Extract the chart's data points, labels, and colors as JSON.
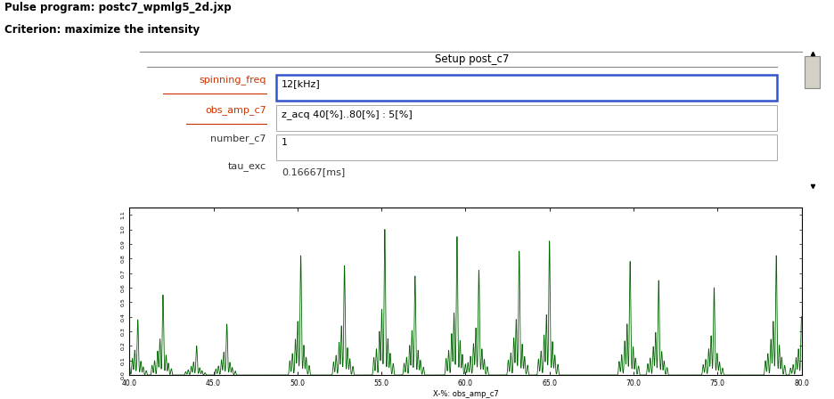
{
  "title_line1": "Pulse program: postc7_wpmlg5_2d.jxp",
  "title_line2": "Criterion: maximize the intensity",
  "panel_title": "Setup post_c7",
  "fields": [
    {
      "label": "spinning_freq",
      "value": "12[kHz]",
      "highlighted": true,
      "red_label": true
    },
    {
      "label": "obs_amp_c7",
      "value": "z_acq 40[%]..80[%] : 5[%]",
      "highlighted": false,
      "red_label": true
    },
    {
      "label": "number_c7",
      "value": "1",
      "highlighted": false,
      "red_label": false
    },
    {
      "label": "tau_exc",
      "value": "0.16667[ms]",
      "highlighted": false,
      "red_label": false,
      "no_box": true
    }
  ],
  "xaxis_label": "X-%: obs_amp_c7",
  "xmin": 40.0,
  "xmax": 80.0,
  "ymin": 0.0,
  "ymax": 1.15,
  "bg_color": "#ffffff",
  "panel_bg": "#d4d0c8",
  "spectrum_color": "#006400",
  "peak_centers": [
    40.5,
    42.0,
    44.0,
    45.8,
    50.2,
    52.8,
    55.2,
    57.0,
    59.5,
    60.8,
    63.2,
    65.0,
    69.8,
    71.5,
    74.8,
    78.5,
    80.0
  ],
  "peak_heights": [
    0.38,
    0.55,
    0.2,
    0.35,
    0.82,
    0.75,
    1.0,
    0.68,
    0.95,
    0.72,
    0.85,
    0.92,
    0.78,
    0.65,
    0.6,
    0.82,
    0.4
  ],
  "tick_label_size": 6,
  "axis_label_size": 6
}
